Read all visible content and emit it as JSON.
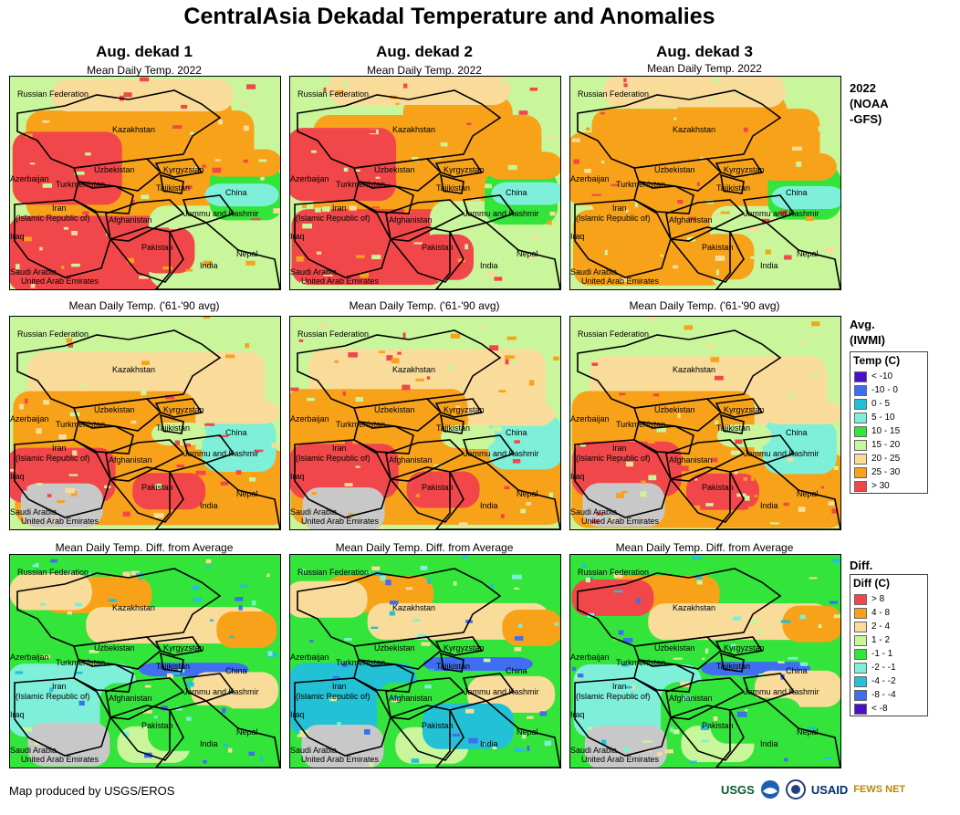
{
  "title": "CentralAsia Dekadal Temperature and Anomalies",
  "columns": [
    "Aug. dekad 1",
    "Aug. dekad 2",
    "Aug. dekad 3"
  ],
  "row_subtitles": [
    "Mean Daily Temp. 2022",
    "Mean Daily Temp. ('61-'90 avg)",
    "Mean Daily Temp. Diff. from Average"
  ],
  "row_labels": [
    {
      "lines": [
        "2022",
        "(NOAA",
        "-GFS)"
      ]
    },
    {
      "lines": [
        "Avg.",
        "(IWMI)"
      ]
    },
    {
      "lines": [
        "Diff."
      ]
    }
  ],
  "map_labels": {
    "russia": "Russian Federation",
    "kazakhstan": "Kazakhstan",
    "uzbekistan": "Uzbekistan",
    "kyrgyzstan": "Kyrgyzstan",
    "azerbaijan": "Azerbaijan",
    "turkmenistan": "Turkmenistan",
    "tajikistan": "Tajikistan",
    "china": "China",
    "iran1": "Iran",
    "iran2": "(Islamic Republic of)",
    "afghanistan": "Afghanistan",
    "jammu": "Jammu and Kashmir",
    "iraq": "Iraq",
    "pakistan": "Pakistan",
    "nepal": "Nepal",
    "india": "India",
    "saudi": "Saudi Arabia",
    "uae": "United Arab Emirates"
  },
  "temp_legend": {
    "title": "Temp (C)",
    "items": [
      {
        "label": "< -10",
        "color": "#4b0fc9"
      },
      {
        "label": "-10 - 0",
        "color": "#3f6ff0"
      },
      {
        "label": "0 - 5",
        "color": "#23c1d6"
      },
      {
        "label": "5 - 10",
        "color": "#7ef0d9"
      },
      {
        "label": "10 - 15",
        "color": "#33e43a"
      },
      {
        "label": "15 - 20",
        "color": "#c9f59b"
      },
      {
        "label": "20 - 25",
        "color": "#f9dc9a"
      },
      {
        "label": "25 - 30",
        "color": "#f8a21a"
      },
      {
        "label": "> 30",
        "color": "#f2474a"
      }
    ]
  },
  "diff_legend": {
    "title": "Diff (C)",
    "items": [
      {
        "label": "> 8",
        "color": "#f2474a"
      },
      {
        "label": "4 - 8",
        "color": "#f8a21a"
      },
      {
        "label": "2 - 4",
        "color": "#f9dc9a"
      },
      {
        "label": "1 - 2",
        "color": "#c9f59b"
      },
      {
        "label": "-1 - 1",
        "color": "#33e43a"
      },
      {
        "label": "-2 - -1",
        "color": "#7ef0d9"
      },
      {
        "label": "-4 - -2",
        "color": "#23c1d6"
      },
      {
        "label": "-8 - -4",
        "color": "#3f6ff0"
      },
      {
        "label": "< -8",
        "color": "#4b0fc9"
      }
    ]
  },
  "credit": "Map produced by USGS/EROS",
  "logos": [
    "USGS",
    "USAID",
    "FEWS NET"
  ]
}
